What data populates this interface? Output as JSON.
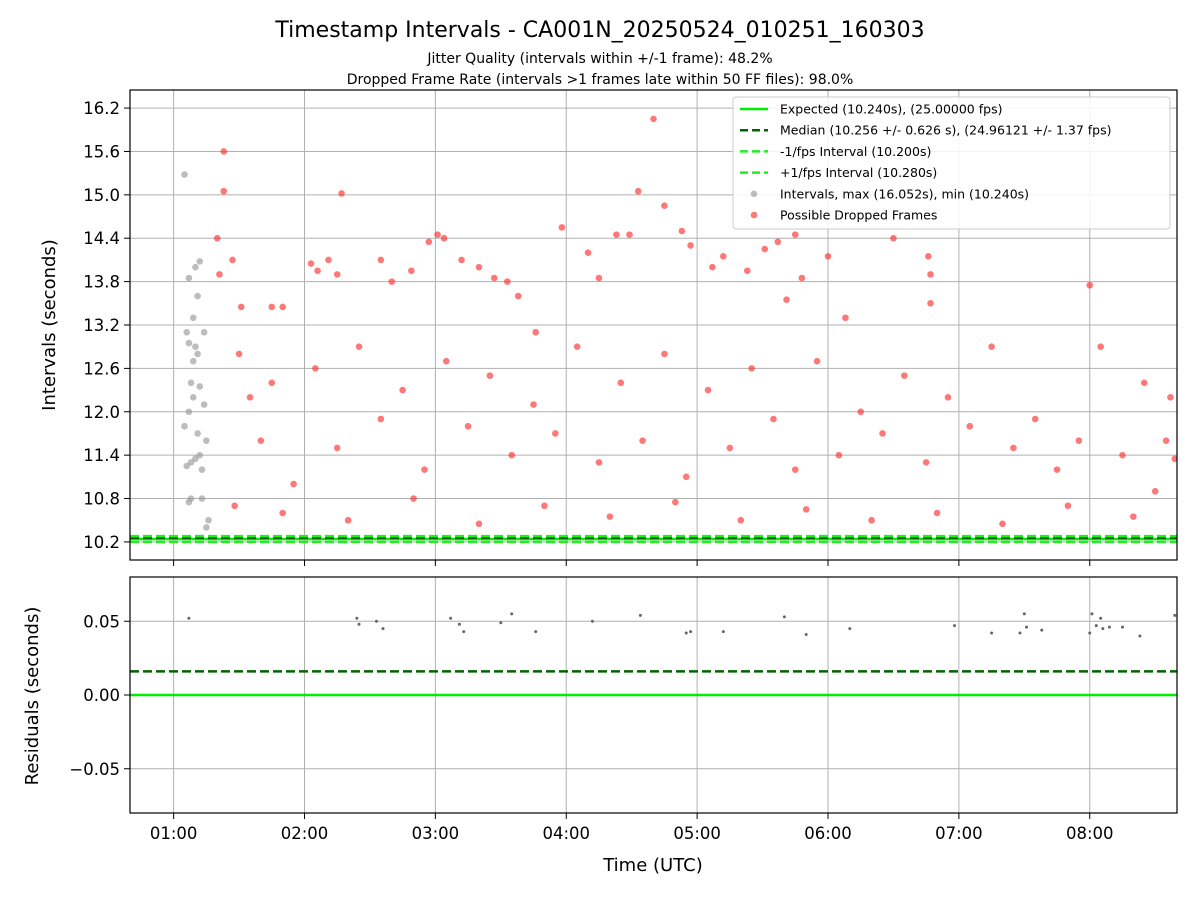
{
  "figure": {
    "title": "Timestamp Intervals - CA001N_20250524_010251_160303",
    "subtitle_1": "Jitter Quality (intervals within +/-1 frame): 48.2%",
    "subtitle_2": "Dropped Frame Rate (intervals >1 frames late within 50 FF files): 98.0%"
  },
  "colors": {
    "expected": "#00ee00",
    "median": "#006400",
    "fps_interval": "#22ee22",
    "intervals": "#999999",
    "dropped": "#ff3030",
    "residuals": "#666666",
    "grid": "#b0b0b0"
  },
  "chart_data": [
    {
      "type": "scatter",
      "ylabel": "Intervals (seconds)",
      "xlim": [
        "00:40",
        "08:40"
      ],
      "ylim": [
        9.95,
        16.45
      ],
      "grid": true,
      "legend_position": "top-right",
      "x_ticks": [
        "01:00",
        "02:00",
        "03:00",
        "04:00",
        "05:00",
        "06:00",
        "07:00",
        "08:00"
      ],
      "y_ticks": [
        "10.2",
        "10.8",
        "11.4",
        "12.0",
        "12.6",
        "13.2",
        "13.8",
        "14.4",
        "15.0",
        "15.6",
        "16.2"
      ],
      "lines": [
        {
          "name": "Expected (10.240s), (25.00000 fps)",
          "y": 10.24,
          "style": "solid",
          "color_key": "expected"
        },
        {
          "name": "Median (10.256 +/- 0.626 s), (24.96121 +/- 1.37 fps)",
          "y": 10.256,
          "style": "dashed",
          "color_key": "median"
        },
        {
          "name": "-1/fps Interval (10.200s)",
          "y": 10.2,
          "style": "dashed",
          "color_key": "fps_interval"
        },
        {
          "name": "+1/fps Interval (10.280s)",
          "y": 10.28,
          "style": "dashed",
          "color_key": "fps_interval"
        }
      ],
      "series": [
        {
          "name": "Intervals, max (16.052s), min (10.240s)",
          "color_key": "intervals",
          "points": [
            [
              "01:05",
              15.28
            ],
            [
              "01:06",
              13.1
            ],
            [
              "01:07",
              12.95
            ],
            [
              "01:08",
              11.3
            ],
            [
              "01:06",
              11.25
            ],
            [
              "01:05",
              11.8
            ],
            [
              "01:07",
              12.0
            ],
            [
              "01:08",
              12.4
            ],
            [
              "01:09",
              12.7
            ],
            [
              "01:07",
              13.85
            ],
            [
              "01:09",
              13.3
            ],
            [
              "01:10",
              14.0
            ],
            [
              "01:12",
              14.08
            ],
            [
              "01:11",
              13.6
            ],
            [
              "01:10",
              12.9
            ],
            [
              "01:09",
              12.2
            ],
            [
              "01:11",
              11.7
            ],
            [
              "01:12",
              11.4
            ],
            [
              "01:10",
              11.35
            ],
            [
              "01:13",
              11.2
            ],
            [
              "01:14",
              13.1
            ],
            [
              "01:14",
              12.1
            ],
            [
              "01:15",
              11.6
            ],
            [
              "01:13",
              10.8
            ],
            [
              "01:07",
              10.75
            ],
            [
              "01:08",
              10.8
            ],
            [
              "01:15",
              10.4
            ],
            [
              "01:16",
              10.5
            ],
            [
              "01:12",
              12.35
            ],
            [
              "01:11",
              12.8
            ]
          ]
        },
        {
          "name": "Possible Dropped Frames",
          "color_key": "dropped",
          "points": [
            [
              "01:23",
              15.6
            ],
            [
              "01:23",
              15.05
            ],
            [
              "01:20",
              14.4
            ],
            [
              "01:27",
              14.1
            ],
            [
              "01:21",
              13.9
            ],
            [
              "01:31",
              13.45
            ],
            [
              "01:45",
              13.45
            ],
            [
              "01:50",
              13.45
            ],
            [
              "02:03",
              14.05
            ],
            [
              "02:06",
              13.95
            ],
            [
              "02:11",
              14.1
            ],
            [
              "02:15",
              13.9
            ],
            [
              "02:17",
              15.02
            ],
            [
              "02:35",
              14.1
            ],
            [
              "02:40",
              13.8
            ],
            [
              "02:49",
              13.95
            ],
            [
              "02:57",
              14.35
            ],
            [
              "03:01",
              14.45
            ],
            [
              "03:04",
              14.4
            ],
            [
              "03:12",
              14.1
            ],
            [
              "03:20",
              14.0
            ],
            [
              "03:27",
              13.85
            ],
            [
              "03:33",
              13.8
            ],
            [
              "03:38",
              13.6
            ],
            [
              "03:46",
              13.1
            ],
            [
              "03:58",
              14.55
            ],
            [
              "04:10",
              14.2
            ],
            [
              "04:15",
              13.85
            ],
            [
              "04:23",
              14.45
            ],
            [
              "04:29",
              14.45
            ],
            [
              "04:33",
              15.05
            ],
            [
              "04:40",
              16.05
            ],
            [
              "04:45",
              14.85
            ],
            [
              "04:53",
              14.5
            ],
            [
              "04:57",
              14.3
            ],
            [
              "05:07",
              14.0
            ],
            [
              "05:12",
              14.15
            ],
            [
              "05:23",
              13.95
            ],
            [
              "05:31",
              14.25
            ],
            [
              "05:37",
              14.35
            ],
            [
              "05:41",
              13.55
            ],
            [
              "05:45",
              14.45
            ],
            [
              "05:48",
              13.85
            ],
            [
              "06:00",
              14.15
            ],
            [
              "06:08",
              13.3
            ],
            [
              "06:30",
              14.4
            ],
            [
              "06:46",
              14.15
            ],
            [
              "06:47",
              13.9
            ],
            [
              "06:47",
              13.5
            ],
            [
              "08:00",
              13.75
            ],
            [
              "01:30",
              12.8
            ],
            [
              "01:35",
              12.2
            ],
            [
              "01:40",
              11.6
            ],
            [
              "01:45",
              12.4
            ],
            [
              "01:55",
              11.0
            ],
            [
              "02:05",
              12.6
            ],
            [
              "02:15",
              11.5
            ],
            [
              "02:25",
              12.9
            ],
            [
              "02:35",
              11.9
            ],
            [
              "02:45",
              12.3
            ],
            [
              "02:55",
              11.2
            ],
            [
              "03:05",
              12.7
            ],
            [
              "03:15",
              11.8
            ],
            [
              "03:25",
              12.5
            ],
            [
              "03:35",
              11.4
            ],
            [
              "03:45",
              12.1
            ],
            [
              "03:55",
              11.7
            ],
            [
              "04:05",
              12.9
            ],
            [
              "04:15",
              11.3
            ],
            [
              "04:25",
              12.4
            ],
            [
              "04:35",
              11.6
            ],
            [
              "04:45",
              12.8
            ],
            [
              "04:55",
              11.1
            ],
            [
              "05:05",
              12.3
            ],
            [
              "05:15",
              11.5
            ],
            [
              "05:25",
              12.6
            ],
            [
              "05:35",
              11.9
            ],
            [
              "05:45",
              11.2
            ],
            [
              "05:55",
              12.7
            ],
            [
              "06:05",
              11.4
            ],
            [
              "06:15",
              12.0
            ],
            [
              "06:25",
              11.7
            ],
            [
              "06:35",
              12.5
            ],
            [
              "06:45",
              11.3
            ],
            [
              "06:55",
              12.2
            ],
            [
              "07:05",
              11.8
            ],
            [
              "07:15",
              12.9
            ],
            [
              "07:25",
              11.5
            ],
            [
              "07:35",
              11.9
            ],
            [
              "07:45",
              11.2
            ],
            [
              "07:55",
              11.6
            ],
            [
              "08:05",
              12.9
            ],
            [
              "08:15",
              11.4
            ],
            [
              "08:25",
              12.4
            ],
            [
              "08:35",
              11.6
            ],
            [
              "08:37",
              12.2
            ],
            [
              "08:39",
              11.35
            ],
            [
              "01:28",
              10.7
            ],
            [
              "01:50",
              10.6
            ],
            [
              "02:20",
              10.5
            ],
            [
              "02:50",
              10.8
            ],
            [
              "03:20",
              10.45
            ],
            [
              "03:50",
              10.7
            ],
            [
              "04:20",
              10.55
            ],
            [
              "04:50",
              10.75
            ],
            [
              "05:20",
              10.5
            ],
            [
              "05:50",
              10.65
            ],
            [
              "06:20",
              10.5
            ],
            [
              "06:50",
              10.6
            ],
            [
              "07:20",
              10.45
            ],
            [
              "07:50",
              10.7
            ],
            [
              "08:20",
              10.55
            ],
            [
              "08:30",
              10.9
            ]
          ]
        }
      ]
    },
    {
      "type": "scatter",
      "xlabel": "Time (UTC)",
      "ylabel": "Residuals (seconds)",
      "xlim": [
        "00:40",
        "08:40"
      ],
      "ylim": [
        -0.08,
        0.08
      ],
      "grid": true,
      "x_ticks": [
        "01:00",
        "02:00",
        "03:00",
        "04:00",
        "05:00",
        "06:00",
        "07:00",
        "08:00"
      ],
      "y_ticks": [
        "0.05",
        "0.00",
        "−0.05"
      ],
      "lines": [
        {
          "y": 0.0,
          "style": "solid",
          "color_key": "expected"
        },
        {
          "y": 0.016,
          "style": "dashed",
          "color_key": "median"
        }
      ],
      "series": [
        {
          "color_key": "residuals",
          "points": [
            [
              "01:07",
              0.052
            ],
            [
              "02:24",
              0.052
            ],
            [
              "02:25",
              0.048
            ],
            [
              "02:33",
              0.05
            ],
            [
              "02:36",
              0.045
            ],
            [
              "03:07",
              0.052
            ],
            [
              "03:11",
              0.048
            ],
            [
              "03:13",
              0.043
            ],
            [
              "03:30",
              0.049
            ],
            [
              "03:35",
              0.055
            ],
            [
              "03:46",
              0.043
            ],
            [
              "04:12",
              0.05
            ],
            [
              "04:34",
              0.054
            ],
            [
              "04:55",
              0.042
            ],
            [
              "04:57",
              0.043
            ],
            [
              "05:12",
              0.043
            ],
            [
              "05:40",
              0.053
            ],
            [
              "05:50",
              0.041
            ],
            [
              "06:10",
              0.045
            ],
            [
              "06:58",
              0.047
            ],
            [
              "07:15",
              0.042
            ],
            [
              "07:28",
              0.042
            ],
            [
              "07:30",
              0.055
            ],
            [
              "07:31",
              0.046
            ],
            [
              "07:38",
              0.044
            ],
            [
              "08:00",
              0.042
            ],
            [
              "08:01",
              0.055
            ],
            [
              "08:03",
              0.047
            ],
            [
              "08:05",
              0.052
            ],
            [
              "08:06",
              0.045
            ],
            [
              "08:09",
              0.046
            ],
            [
              "08:15",
              0.046
            ],
            [
              "08:23",
              0.04
            ],
            [
              "08:39",
              0.054
            ]
          ]
        }
      ]
    }
  ]
}
